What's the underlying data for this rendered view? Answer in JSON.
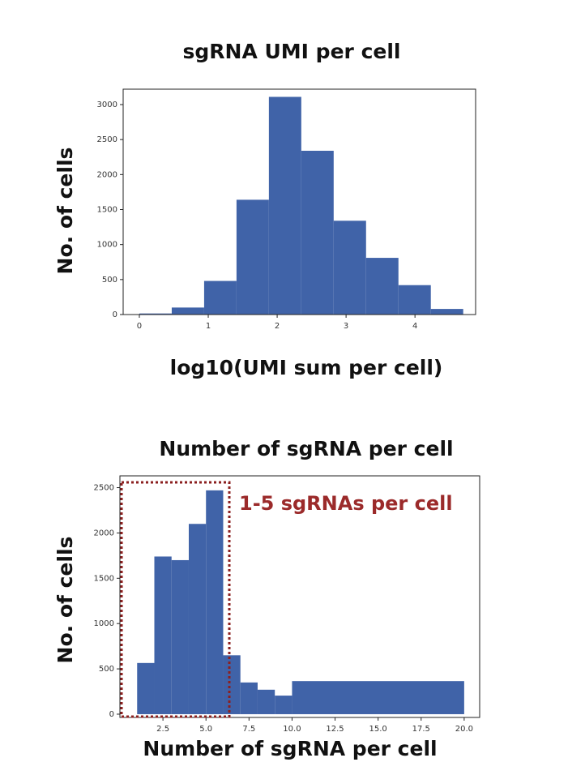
{
  "chart_data": [
    {
      "type": "histogram",
      "title": "sgRNA UMI per cell",
      "xlabel": "log10(UMI sum per cell)",
      "ylabel": "No. of cells",
      "bins": [
        0,
        0.47,
        0.94,
        1.41,
        1.88,
        2.35,
        2.82,
        3.29,
        3.76,
        4.23,
        4.7
      ],
      "counts": [
        15,
        100,
        480,
        1640,
        3110,
        2340,
        1340,
        810,
        420,
        80
      ],
      "color": "#4063a8",
      "xlim": [
        -0.235,
        4.88
      ],
      "ylim": [
        0,
        3220
      ],
      "xticks": [
        0,
        1,
        2,
        3,
        4
      ],
      "yticks": [
        0,
        500,
        1000,
        1500,
        2000,
        2500,
        3000
      ]
    },
    {
      "type": "histogram",
      "title": "Number of sgRNA per cell",
      "xlabel": "Number of sgRNA per cell",
      "ylabel": "No. of cells",
      "annotation": "1-5 sgRNAs per cell",
      "bins": [
        1,
        2,
        3,
        4,
        5,
        6,
        7,
        8,
        9,
        10,
        20
      ],
      "counts": [
        565,
        1740,
        1700,
        2100,
        2470,
        650,
        350,
        270,
        205,
        365
      ],
      "color": "#4063a8",
      "xlim": [
        0,
        20.9
      ],
      "ylim": [
        -36,
        2630
      ],
      "xticks": [
        2.5,
        {
          "value": 5,
          "label": "5.0"
        },
        7.5,
        {
          "value": 10,
          "label": "10.0"
        },
        12.5,
        {
          "value": 15,
          "label": "15.0"
        },
        17.5,
        {
          "value": 20,
          "label": "20.0"
        }
      ],
      "yticks": [
        0,
        500,
        1000,
        1500,
        2000,
        2500
      ]
    }
  ]
}
